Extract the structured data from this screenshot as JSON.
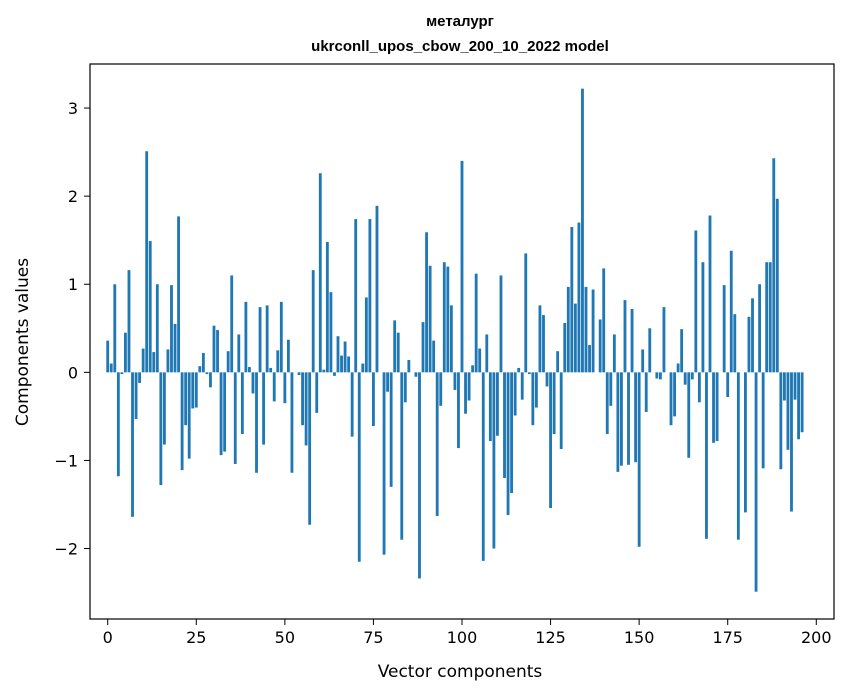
{
  "chart_data": {
    "type": "bar",
    "title": "металург",
    "subtitle": "ukrconll_upos_cbow_200_10_2022 model",
    "xlabel": "Vector components",
    "ylabel": "Components values",
    "xlim": [
      -5,
      205
    ],
    "ylim": [
      -2.8,
      3.5
    ],
    "x_ticks": [
      0,
      25,
      50,
      75,
      100,
      125,
      150,
      175,
      200
    ],
    "x_tick_labels": [
      "0",
      "25",
      "50",
      "75",
      "100",
      "125",
      "150",
      "175",
      "200"
    ],
    "y_ticks": [
      -2,
      -1,
      0,
      1,
      2,
      3
    ],
    "y_tick_labels": [
      "−2",
      "−1",
      "0",
      "1",
      "2",
      "3"
    ],
    "grid": false,
    "bar_color": "#1f77b4",
    "values": [
      0.36,
      0.1,
      1.0,
      -1.18,
      -0.02,
      0.45,
      1.16,
      -1.64,
      -0.53,
      -0.12,
      0.27,
      2.51,
      1.49,
      0.23,
      1.0,
      -1.28,
      -0.82,
      0.26,
      0.99,
      0.55,
      1.77,
      -1.11,
      -0.6,
      -0.98,
      -0.41,
      -0.4,
      0.07,
      0.22,
      -0.02,
      -0.17,
      0.53,
      0.48,
      -0.94,
      -0.9,
      0.24,
      1.1,
      -1.04,
      0.43,
      -0.7,
      0.8,
      0.06,
      -0.24,
      -1.14,
      0.74,
      -0.82,
      0.76,
      0.05,
      -0.33,
      0.25,
      0.8,
      -0.35,
      0.37,
      -1.14,
      0.0,
      -0.03,
      -0.6,
      -0.83,
      -1.73,
      1.16,
      -0.46,
      2.26,
      0.03,
      1.48,
      0.91,
      -0.04,
      0.41,
      0.19,
      0.35,
      0.18,
      -0.73,
      1.74,
      -2.15,
      0.1,
      0.85,
      1.74,
      -0.61,
      1.89,
      0.0,
      -2.07,
      -0.22,
      -1.3,
      0.59,
      0.45,
      -1.9,
      -0.34,
      0.14,
      0.0,
      -0.05,
      -2.34,
      0.57,
      1.59,
      1.21,
      0.36,
      -1.63,
      -0.38,
      1.25,
      1.2,
      0.76,
      -0.2,
      -0.86,
      2.4,
      -0.47,
      -0.32,
      0.08,
      1.12,
      0.27,
      -2.14,
      0.43,
      -0.78,
      -2.0,
      -0.72,
      1.1,
      -1.2,
      -1.62,
      -1.37,
      -0.49,
      0.05,
      -0.31,
      1.35,
      -0.02,
      -0.6,
      -0.4,
      0.76,
      0.65,
      -0.16,
      -1.54,
      -0.7,
      0.24,
      -0.87,
      0.56,
      0.97,
      1.65,
      0.78,
      1.7,
      3.22,
      0.97,
      0.31,
      0.94,
      0.0,
      0.6,
      1.18,
      -0.7,
      -0.38,
      0.43,
      -1.13,
      -1.06,
      0.82,
      -1.05,
      0.72,
      -1.02,
      -1.98,
      0.26,
      -0.45,
      0.5,
      0.0,
      -0.07,
      -0.08,
      0.74,
      0.0,
      -0.6,
      -0.5,
      0.1,
      0.49,
      -0.14,
      -0.97,
      -0.08,
      1.61,
      -0.34,
      1.25,
      -1.89,
      1.78,
      -0.8,
      -0.78,
      0.0,
      0.99,
      -0.28,
      1.38,
      0.66,
      -1.9,
      0.0,
      -1.59,
      0.63,
      0.84,
      -2.49,
      1.0,
      -1.09,
      1.25,
      1.25,
      2.43,
      1.97,
      -1.1,
      -0.32,
      -0.88,
      -1.58,
      -0.31,
      -0.76,
      -0.68
    ]
  }
}
